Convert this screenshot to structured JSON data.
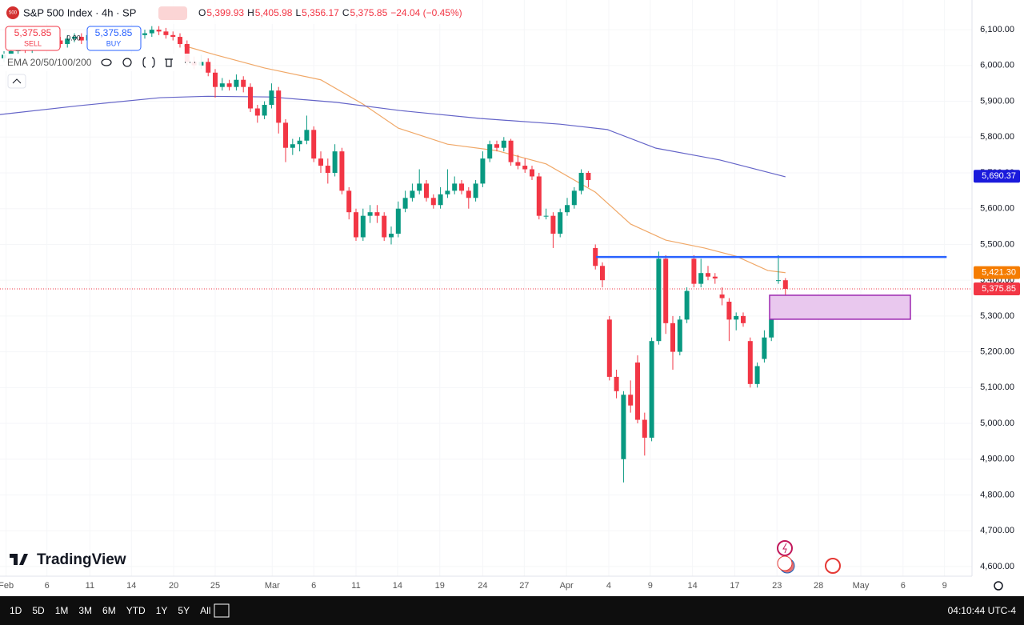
{
  "header": {
    "badge": "500",
    "symbol": "S&P 500 Index · 4h · SP",
    "ohlc": [
      {
        "label": "O",
        "value": "5,399.93"
      },
      {
        "label": "H",
        "value": "5,405.98"
      },
      {
        "label": "L",
        "value": "5,356.17"
      },
      {
        "label": "C",
        "value": "5,375.85"
      }
    ],
    "change": "−24.04 (−0.45%)"
  },
  "trade": {
    "sell_price": "5,375.85",
    "sell": "SELL",
    "spread": "0.00",
    "buy_price": "5,375.85",
    "buy": "BUY"
  },
  "indicator": "EMA 20/50/100/200",
  "brand": "TradingView",
  "toolbar": {
    "ranges": [
      "1D",
      "5D",
      "1M",
      "3M",
      "6M",
      "YTD",
      "1Y",
      "5Y",
      "All"
    ],
    "clock": "04:10:44 UTC-4"
  },
  "chart_data": {
    "type": "candlestick",
    "up_color": "#089981",
    "down_color": "#f23645",
    "grid": true,
    "xlim": [
      -0.57,
      137.5
    ],
    "ylim": [
      4573,
      6183
    ],
    "yticks": [
      {
        "value": 6100,
        "label": "6,100.00"
      },
      {
        "value": 6000,
        "label": "6,000.00"
      },
      {
        "value": 5900,
        "label": "5,900.00"
      },
      {
        "value": 5800,
        "label": "5,800.00"
      },
      {
        "value": 5700,
        "label": "5,700.00"
      },
      {
        "value": 5600,
        "label": "5,600.00"
      },
      {
        "value": 5500,
        "label": "5,500.00"
      },
      {
        "value": 5400,
        "label": "5,400.00"
      },
      {
        "value": 5300,
        "label": "5,300.00"
      },
      {
        "value": 5200,
        "label": "5,200.00"
      },
      {
        "value": 5100,
        "label": "5,100.00"
      },
      {
        "value": 5000,
        "label": "5,000.00"
      },
      {
        "value": 4900,
        "label": "4,900.00"
      },
      {
        "value": 4800,
        "label": "4,800.00"
      },
      {
        "value": 4700,
        "label": "4,700.00"
      },
      {
        "value": 4600,
        "label": "4,600.00"
      }
    ],
    "xticks": [
      {
        "value": 0.3,
        "label": "Feb"
      },
      {
        "value": 6.1,
        "label": "6"
      },
      {
        "value": 12.2,
        "label": "11"
      },
      {
        "value": 18.1,
        "label": "14"
      },
      {
        "value": 24.1,
        "label": "20"
      },
      {
        "value": 30,
        "label": "25"
      },
      {
        "value": 38.1,
        "label": "Mar"
      },
      {
        "value": 44,
        "label": "6"
      },
      {
        "value": 50,
        "label": "11"
      },
      {
        "value": 55.9,
        "label": "14"
      },
      {
        "value": 61.9,
        "label": "19"
      },
      {
        "value": 68,
        "label": "24"
      },
      {
        "value": 73.9,
        "label": "27"
      },
      {
        "value": 79.9,
        "label": "Apr"
      },
      {
        "value": 85.9,
        "label": "4"
      },
      {
        "value": 91.8,
        "label": "9"
      },
      {
        "value": 97.8,
        "label": "14"
      },
      {
        "value": 103.8,
        "label": "17"
      },
      {
        "value": 109.8,
        "label": "23"
      },
      {
        "value": 115.7,
        "label": "28"
      },
      {
        "value": 121.7,
        "label": "May"
      },
      {
        "value": 127.7,
        "label": "6"
      },
      {
        "value": 133.6,
        "label": "9"
      }
    ],
    "ohlc": [
      [
        6020,
        6040,
        6010,
        6030
      ],
      [
        6030,
        6050,
        6020,
        6040
      ],
      [
        6040,
        6060,
        6030,
        6050
      ],
      [
        6050,
        6060,
        6035,
        6045
      ],
      [
        6045,
        6070,
        6035,
        6060
      ],
      [
        6060,
        6070,
        6045,
        6055
      ],
      [
        6055,
        6075,
        6045,
        6065
      ],
      [
        6065,
        6080,
        6055,
        6070
      ],
      [
        6070,
        6080,
        6050,
        6060
      ],
      [
        6060,
        6085,
        6050,
        6075
      ],
      [
        6075,
        6090,
        6065,
        6080
      ],
      [
        6080,
        6090,
        6060,
        6070
      ],
      [
        6070,
        6095,
        6060,
        6085
      ],
      [
        6085,
        6100,
        6075,
        6090
      ],
      [
        6090,
        6100,
        6070,
        6080
      ],
      [
        6080,
        6095,
        6070,
        6085
      ],
      [
        6085,
        6100,
        6075,
        6090
      ],
      [
        6090,
        6105,
        6080,
        6095
      ],
      [
        6095,
        6105,
        6080,
        6090
      ],
      [
        6090,
        6100,
        6075,
        6085
      ],
      [
        6085,
        6100,
        6075,
        6090
      ],
      [
        6090,
        6110,
        6080,
        6100
      ],
      [
        6100,
        6110,
        6085,
        6095
      ],
      [
        6095,
        6105,
        6075,
        6085
      ],
      [
        6085,
        6095,
        6070,
        6080
      ],
      [
        6080,
        6090,
        6050,
        6060
      ],
      [
        6060,
        6070,
        6000,
        6010
      ],
      [
        6010,
        6025,
        5990,
        6000
      ],
      [
        6000,
        6030,
        5990,
        6010
      ],
      [
        6010,
        6020,
        5970,
        5980
      ],
      [
        5980,
        5990,
        5910,
        5940
      ],
      [
        5940,
        5965,
        5930,
        5950
      ],
      [
        5950,
        5960,
        5930,
        5940
      ],
      [
        5940,
        5975,
        5930,
        5960
      ],
      [
        5960,
        5970,
        5925,
        5940
      ],
      [
        5940,
        5950,
        5870,
        5880
      ],
      [
        5880,
        5890,
        5840,
        5860
      ],
      [
        5860,
        5900,
        5850,
        5890
      ],
      [
        5890,
        5950,
        5880,
        5930
      ],
      [
        5930,
        5940,
        5810,
        5840
      ],
      [
        5840,
        5850,
        5730,
        5770
      ],
      [
        5770,
        5795,
        5750,
        5780
      ],
      [
        5780,
        5800,
        5760,
        5790
      ],
      [
        5790,
        5860,
        5780,
        5820
      ],
      [
        5820,
        5830,
        5730,
        5740
      ],
      [
        5740,
        5760,
        5700,
        5720
      ],
      [
        5720,
        5740,
        5670,
        5700
      ],
      [
        5700,
        5780,
        5690,
        5760
      ],
      [
        5760,
        5770,
        5640,
        5650
      ],
      [
        5650,
        5660,
        5570,
        5590
      ],
      [
        5590,
        5600,
        5510,
        5520
      ],
      [
        5520,
        5600,
        5510,
        5580
      ],
      [
        5580,
        5610,
        5560,
        5590
      ],
      [
        5590,
        5610,
        5560,
        5580
      ],
      [
        5580,
        5590,
        5510,
        5520
      ],
      [
        5520,
        5550,
        5500,
        5530
      ],
      [
        5530,
        5620,
        5520,
        5600
      ],
      [
        5600,
        5650,
        5590,
        5630
      ],
      [
        5630,
        5670,
        5620,
        5650
      ],
      [
        5650,
        5710,
        5640,
        5670
      ],
      [
        5670,
        5680,
        5620,
        5630
      ],
      [
        5630,
        5640,
        5600,
        5610
      ],
      [
        5610,
        5660,
        5600,
        5640
      ],
      [
        5640,
        5710,
        5630,
        5650
      ],
      [
        5650,
        5690,
        5640,
        5670
      ],
      [
        5670,
        5680,
        5640,
        5650
      ],
      [
        5650,
        5660,
        5600,
        5630
      ],
      [
        5630,
        5680,
        5620,
        5670
      ],
      [
        5670,
        5760,
        5660,
        5740
      ],
      [
        5740,
        5790,
        5730,
        5780
      ],
      [
        5780,
        5790,
        5760,
        5770
      ],
      [
        5770,
        5800,
        5760,
        5790
      ],
      [
        5790,
        5795,
        5720,
        5730
      ],
      [
        5730,
        5750,
        5710,
        5720
      ],
      [
        5720,
        5740,
        5700,
        5710
      ],
      [
        5710,
        5720,
        5680,
        5690
      ],
      [
        5690,
        5700,
        5570,
        5580
      ],
      [
        5580,
        5600,
        5570,
        5580
      ],
      [
        5580,
        5590,
        5490,
        5530
      ],
      [
        5530,
        5600,
        5520,
        5590
      ],
      [
        5590,
        5630,
        5580,
        5610
      ],
      [
        5610,
        5660,
        5600,
        5650
      ],
      [
        5650,
        5710,
        5640,
        5700
      ],
      [
        5700,
        5705,
        5660,
        5680
      ],
      [
        5490,
        5500,
        5430,
        5440
      ],
      [
        5440,
        5450,
        5380,
        5400
      ],
      [
        5290,
        5300,
        5120,
        5130
      ],
      [
        5130,
        5150,
        5070,
        5090
      ],
      [
        4900,
        5090,
        4835,
        5080
      ],
      [
        5080,
        5120,
        5030,
        5050
      ],
      [
        5170,
        5190,
        5000,
        5010
      ],
      [
        5010,
        5030,
        4910,
        4960
      ],
      [
        4960,
        5240,
        4950,
        5230
      ],
      [
        5230,
        5480,
        5220,
        5460
      ],
      [
        5460,
        5470,
        5250,
        5280
      ],
      [
        5280,
        5300,
        5150,
        5200
      ],
      [
        5200,
        5300,
        5190,
        5290
      ],
      [
        5290,
        5380,
        5280,
        5370
      ],
      [
        5460,
        5470,
        5380,
        5390
      ],
      [
        5390,
        5460,
        5380,
        5420
      ],
      [
        5420,
        5440,
        5400,
        5410
      ],
      [
        5410,
        5420,
        5390,
        5405
      ],
      [
        5360,
        5380,
        5330,
        5350
      ],
      [
        5340,
        5350,
        5230,
        5290
      ],
      [
        5290,
        5310,
        5260,
        5300
      ],
      [
        5300,
        5310,
        5270,
        5280
      ],
      [
        5230,
        5240,
        5100,
        5110
      ],
      [
        5110,
        5170,
        5100,
        5160
      ],
      [
        5180,
        5260,
        5170,
        5240
      ],
      [
        5240,
        5300,
        5230,
        5290
      ],
      [
        5400,
        5470,
        5390,
        5400
      ],
      [
        5399.93,
        5405.98,
        5356.17,
        5375.85
      ]
    ],
    "series": [
      {
        "color": "#f0a868",
        "x": [
          25.6,
          30,
          37,
          45,
          51,
          56,
          63,
          70,
          77,
          84,
          89,
          94,
          99.5,
          104,
          108.5,
          111
        ],
        "values": [
          6055,
          6030,
          5993,
          5960,
          5892,
          5825,
          5780,
          5762,
          5725,
          5646,
          5557,
          5512,
          5490,
          5467,
          5427,
          5421
        ]
      },
      {
        "color": "#6464c8",
        "x": [
          -0.57,
          10.8,
          22.2,
          29,
          38,
          47.2,
          56.3,
          67.6,
          79,
          85.7,
          92.6,
          101.7,
          111
        ],
        "values": [
          5863,
          5888,
          5910,
          5914,
          5912,
          5897,
          5874,
          5852,
          5836,
          5821,
          5769,
          5736,
          5689
        ]
      }
    ],
    "price_labels": [
      {
        "value": 5690.37,
        "label": "5,690.37",
        "color": "#1a1adc"
      },
      {
        "value": 5421.3,
        "label": "5,421.30",
        "color": "#f57c00"
      },
      {
        "value": 5375.85,
        "label": "5,375.85",
        "color": "#f23645"
      }
    ],
    "last_price": 5375.85,
    "level": {
      "value": 5465,
      "from": 84.1,
      "to": 133.9,
      "color": "#2962ff"
    },
    "zone": {
      "from": 108.75,
      "to": 128.75,
      "low": 5291,
      "high": 5358,
      "color": "#9c27b0"
    }
  }
}
